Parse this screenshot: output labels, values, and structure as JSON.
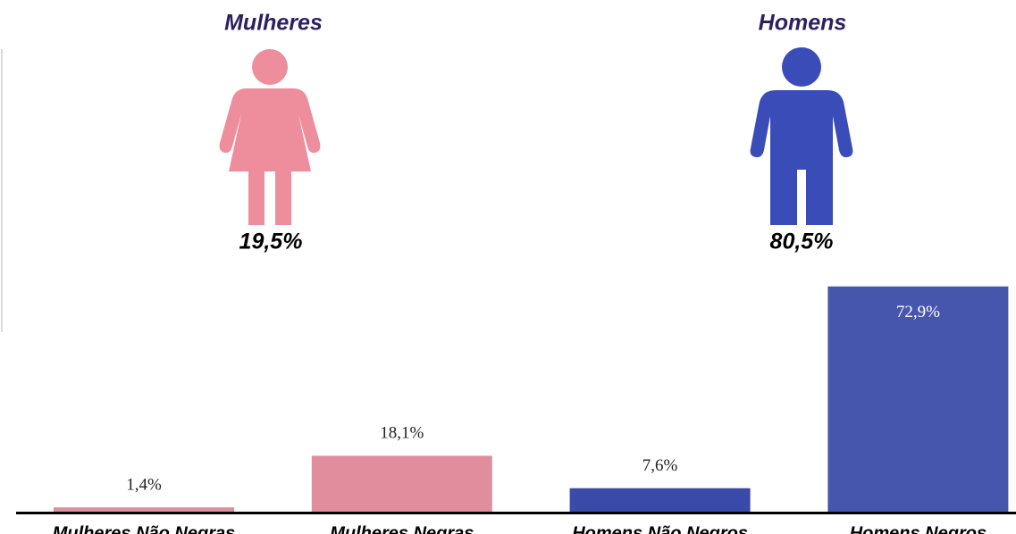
{
  "groups": [
    {
      "name": "Mulheres",
      "share": "19,5%",
      "color": "#ee8e9c"
    },
    {
      "name": "Homens",
      "share": "80,5%",
      "color": "#3a4cb8"
    }
  ],
  "chart_data": {
    "type": "bar",
    "categories": [
      "Mulheres Não Negras",
      "Mulheres Negras",
      "Homens Não Negros",
      "Homens Negros"
    ],
    "values": [
      1.4,
      18.1,
      7.6,
      72.9
    ],
    "value_labels": [
      "1,4%",
      "18,1%",
      "7,6%",
      "72,9%"
    ],
    "colors": [
      "#e08e9e",
      "#e08e9e",
      "#3a4aa8",
      "#4756ad"
    ]
  }
}
